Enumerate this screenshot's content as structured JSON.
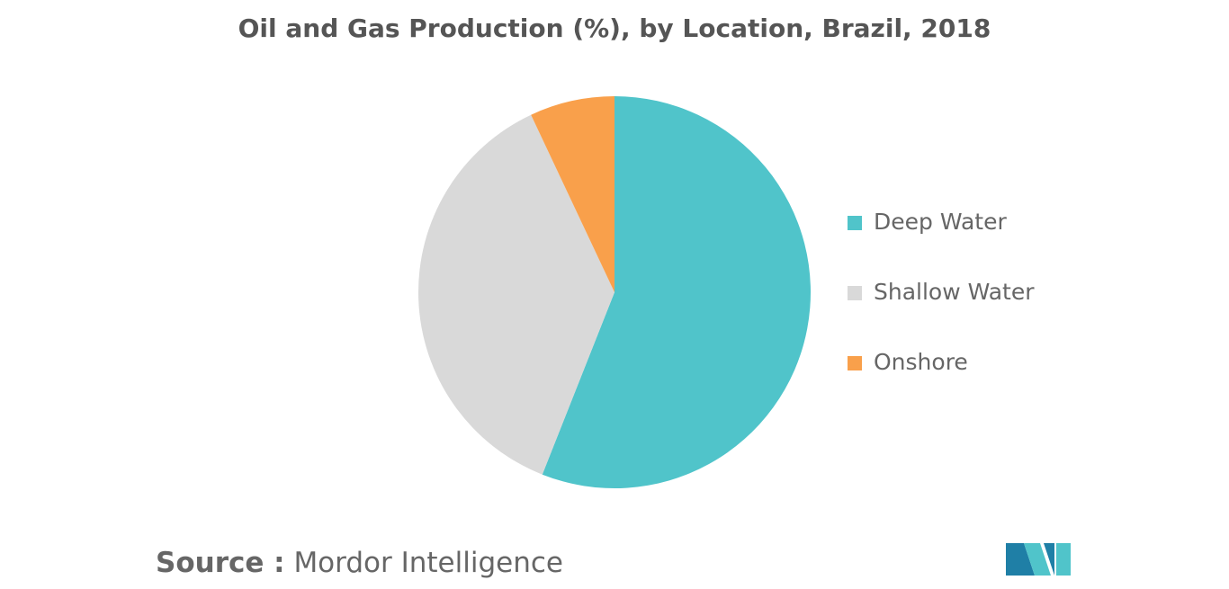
{
  "chart_data": {
    "type": "pie",
    "title": "Oil and Gas Production (%), by Location, Brazil, 2018",
    "categories": [
      "Deep Water",
      "Shallow Water",
      "Onshore"
    ],
    "values": [
      56,
      37,
      7
    ],
    "colors": [
      "#50c4ca",
      "#d9d9d9",
      "#f9a04b"
    ],
    "legend": "right"
  },
  "footer": {
    "source_label": "Source :",
    "source": "Mordor Intelligence"
  }
}
